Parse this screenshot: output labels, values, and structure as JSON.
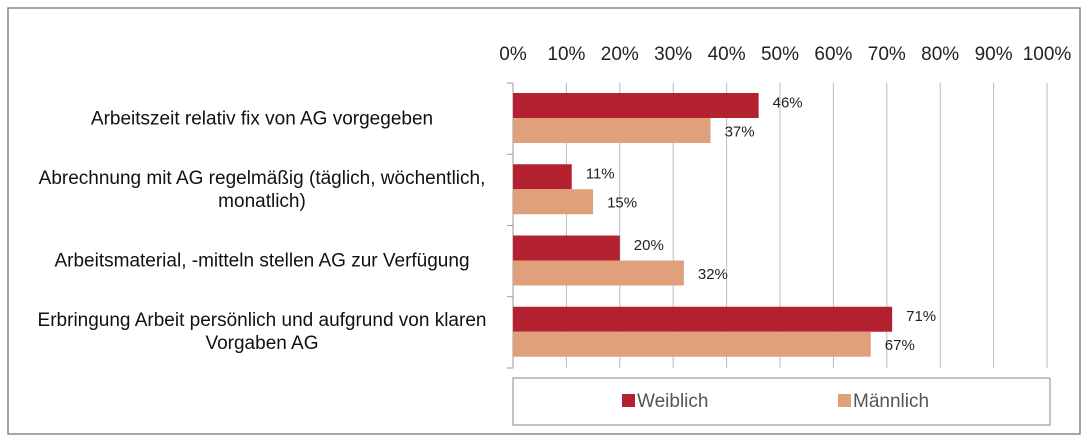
{
  "chart_data": {
    "type": "hbar",
    "categories": [
      "Arbeitszeit relativ fix von AG vorgegeben",
      "Abrechnung mit AG regelmäßig (täglich, wöchentlich, monatlich)",
      "Arbeitsmaterial, -mitteln stellen AG zur Verfügung",
      "Erbringung Arbeit persönlich und aufgrund von klaren Vorgaben AG"
    ],
    "series": [
      {
        "name": "Weiblich",
        "color": "#b3202f",
        "values": [
          46,
          11,
          20,
          71
        ],
        "value_labels": [
          "46%",
          "11%",
          "20%",
          "71%"
        ]
      },
      {
        "name": "Männlich",
        "color": "#e0a07c",
        "values": [
          37,
          15,
          32,
          67
        ],
        "value_labels": [
          "37%",
          "15%",
          "32%",
          "67%"
        ]
      }
    ],
    "xlim": [
      0,
      100
    ],
    "xticks": [
      {
        "value": 0,
        "label": "0%"
      },
      {
        "value": 10,
        "label": "10%"
      },
      {
        "value": 20,
        "label": "20%"
      },
      {
        "value": 30,
        "label": "30%"
      },
      {
        "value": 40,
        "label": "40%"
      },
      {
        "value": 50,
        "label": "50%"
      },
      {
        "value": 60,
        "label": "60%"
      },
      {
        "value": 70,
        "label": "70%"
      },
      {
        "value": 80,
        "label": "80%"
      },
      {
        "value": 90,
        "label": "90%"
      },
      {
        "value": 100,
        "label": "100%"
      }
    ],
    "grid": true,
    "legend": "bottom"
  }
}
